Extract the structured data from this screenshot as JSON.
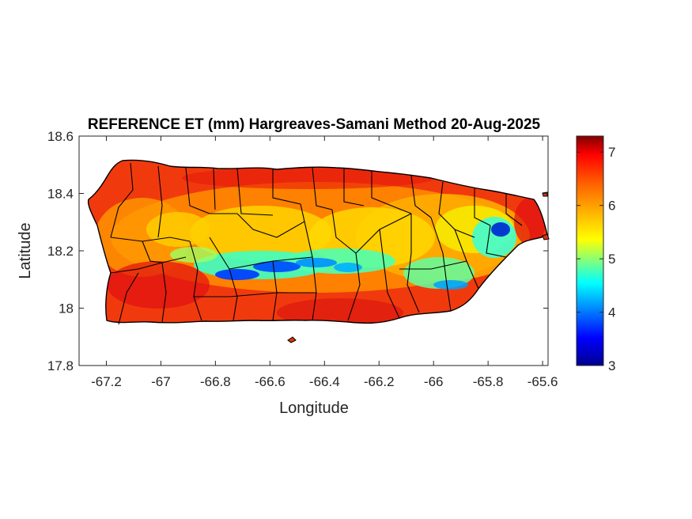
{
  "title": "REFERENCE ET (mm) Hargreaves-Samani Method  20-Aug-2025",
  "xlabel": "Longitude",
  "ylabel": "Latitude",
  "xlim": [
    -67.3,
    -65.58
  ],
  "ylim": [
    17.8,
    18.6
  ],
  "x_ticks": [
    "-67.2",
    "-67",
    "-66.8",
    "-66.6",
    "-66.4",
    "-66.2",
    "-66",
    "-65.8",
    "-65.6"
  ],
  "x_tick_values": [
    -67.2,
    -67.0,
    -66.8,
    -66.6,
    -66.4,
    -66.2,
    -66.0,
    -65.8,
    -65.6
  ],
  "y_ticks": [
    "18.6",
    "18.4",
    "18.2",
    "18",
    "17.8"
  ],
  "y_tick_values": [
    18.6,
    18.4,
    18.2,
    18.0,
    17.8
  ],
  "colorbar": {
    "colormap": "jet",
    "range": [
      3,
      7.3
    ],
    "ticks": [
      "7",
      "6",
      "5",
      "4",
      "3"
    ],
    "tick_values": [
      7,
      6,
      5,
      4,
      3
    ]
  },
  "colors": {
    "high": "#d7191c",
    "mid": "#ffcc00",
    "low": "#0000ff",
    "boundary": "#000000"
  },
  "chart_data": {
    "type": "heatmap",
    "title": "REFERENCE ET (mm) Hargreaves-Samani Method  20-Aug-2025",
    "xlabel": "Longitude",
    "ylabel": "Latitude",
    "xlim": [
      -67.3,
      -65.58
    ],
    "ylim": [
      17.8,
      18.6
    ],
    "color_range": [
      3,
      7.3
    ],
    "grid": false,
    "description_values": {
      "coast_typical": 7.0,
      "interior_typical": 6.0,
      "central_ridge_min": 3.5
    }
  }
}
